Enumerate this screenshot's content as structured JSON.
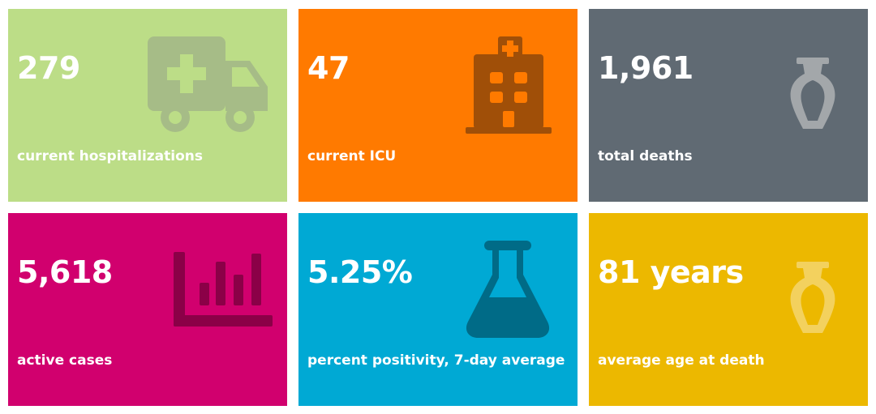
{
  "tiles": [
    {
      "value": "279",
      "label": "current hospitalizations",
      "color": "#bcdd87",
      "icon": "ambulance-icon"
    },
    {
      "value": "47",
      "label": "current ICU",
      "color": "#ff7a00",
      "icon": "hospital-icon"
    },
    {
      "value": "1,961",
      "label": "total deaths",
      "color": "#606a73",
      "icon": "urn-icon"
    },
    {
      "value": "5,618",
      "label": "active cases",
      "color": "#d1006e",
      "icon": "bar-chart-icon"
    },
    {
      "value": "5.25%",
      "label": "percent positivity, 7-day average",
      "color": "#00a9d4",
      "icon": "flask-icon"
    },
    {
      "value": "81 years",
      "label": "average age at death",
      "color": "#ecb800",
      "icon": "urn-icon"
    }
  ]
}
